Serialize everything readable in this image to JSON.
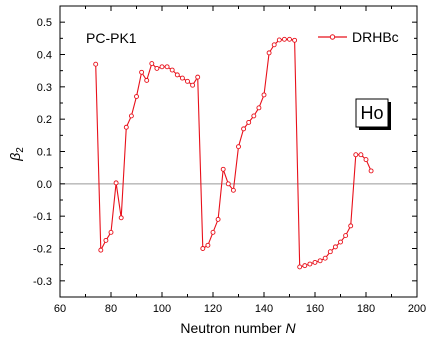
{
  "chart_data": {
    "type": "line",
    "xlabel": "Neutron number",
    "xlabel_symbol": "N",
    "ylabel": "β",
    "ylabel_sub": "2",
    "xlim": [
      60,
      200
    ],
    "ylim": [
      -0.35,
      0.55
    ],
    "x_ticks": [
      60,
      80,
      100,
      120,
      140,
      160,
      180,
      200
    ],
    "y_ticks": [
      -0.3,
      -0.2,
      -0.1,
      0.0,
      0.1,
      0.2,
      0.3,
      0.4,
      0.5
    ],
    "y_tick_labels": [
      "-0.3",
      "-0.2",
      "-0.1",
      "0.0",
      "0.1",
      "0.2",
      "0.3",
      "0.4",
      "0.5"
    ],
    "reference_line": 0.0,
    "legend_position": "top-right",
    "annotations": {
      "model": "PC-PK1",
      "element": "Ho"
    },
    "series": [
      {
        "name": "DRHBc",
        "color": "#e8101a",
        "marker": "open-circle",
        "x": [
          74,
          76,
          78,
          80,
          82,
          84,
          86,
          88,
          90,
          92,
          94,
          96,
          98,
          100,
          102,
          104,
          106,
          108,
          110,
          112,
          114,
          116,
          118,
          120,
          122,
          124,
          126,
          128,
          130,
          132,
          134,
          136,
          138,
          140,
          142,
          144,
          146,
          148,
          150,
          152,
          154,
          156,
          158,
          160,
          162,
          164,
          166,
          168,
          170,
          172,
          174,
          176,
          178,
          180,
          182
        ],
        "y": [
          0.37,
          -0.205,
          -0.175,
          -0.15,
          0.003,
          -0.105,
          0.175,
          0.21,
          0.27,
          0.345,
          0.32,
          0.372,
          0.357,
          0.362,
          0.362,
          0.352,
          0.337,
          0.327,
          0.317,
          0.305,
          0.33,
          -0.2,
          -0.19,
          -0.15,
          -0.11,
          0.045,
          0.0,
          -0.02,
          0.115,
          0.17,
          0.19,
          0.21,
          0.235,
          0.275,
          0.405,
          0.43,
          0.445,
          0.447,
          0.447,
          0.444,
          -0.257,
          -0.253,
          -0.248,
          -0.243,
          -0.238,
          -0.23,
          -0.21,
          -0.195,
          -0.18,
          -0.16,
          -0.13,
          0.09,
          0.09,
          0.075,
          0.04
        ]
      }
    ]
  }
}
